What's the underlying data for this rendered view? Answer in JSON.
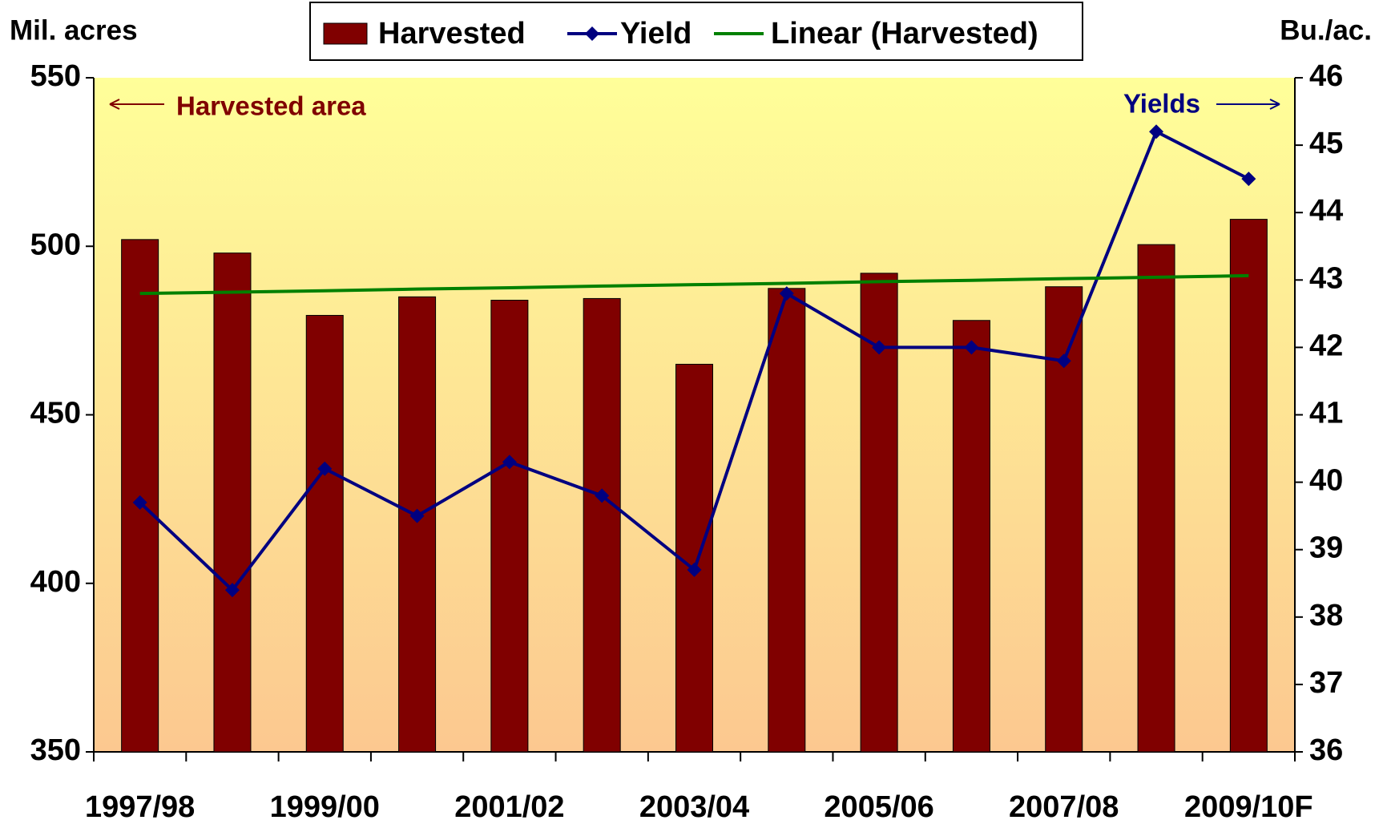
{
  "chart_data": {
    "type": "bar_line",
    "y_label": "Mil. acres",
    "y2_label": "Bu./ac.",
    "annotations": [
      "Harvested area",
      "Yields"
    ],
    "categories": [
      "1997/98",
      null,
      "1999/00",
      null,
      "2001/02",
      null,
      "2003/04",
      null,
      "2005/06",
      null,
      "2007/08",
      null,
      "2009/10F"
    ],
    "series": [
      {
        "name": "Harvested",
        "type": "bar",
        "color": "#800000",
        "values": [
          502,
          498,
          479.5,
          485,
          484,
          484.5,
          465,
          487.5,
          492,
          478,
          488,
          500.5,
          508
        ]
      },
      {
        "name": "Yield",
        "type": "line",
        "axis": "y2",
        "color": "#000080",
        "marker": "diamond",
        "values": [
          39.7,
          38.4,
          40.2,
          39.5,
          40.3,
          39.8,
          38.7,
          42.8,
          42.0,
          42.0,
          41.8,
          45.2,
          44.5
        ]
      },
      {
        "name": "Linear (Harvested)",
        "type": "line",
        "color": "#008000",
        "values": [
          486.0,
          486.4,
          486.8,
          487.3,
          487.7,
          488.2,
          488.6,
          489.0,
          489.5,
          489.9,
          490.4,
          490.8,
          491.3
        ]
      }
    ],
    "ylim": [
      350,
      550
    ],
    "yticks": [
      350,
      400,
      450,
      500,
      550
    ],
    "y2lim": [
      36,
      46
    ],
    "y2ticks": [
      36,
      37,
      38,
      39,
      40,
      41,
      42,
      43,
      44,
      45,
      46
    ]
  }
}
